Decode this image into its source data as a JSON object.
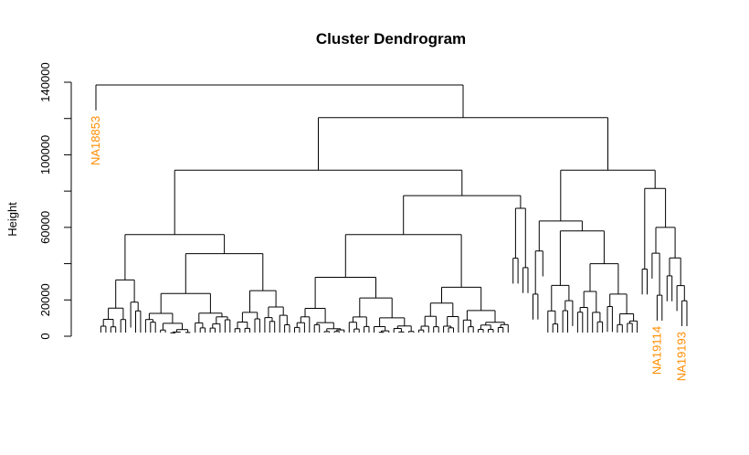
{
  "chart_data": {
    "type": "dendrogram",
    "title": "Cluster Dendrogram",
    "ylabel": "Height",
    "ylim": [
      0,
      140000
    ],
    "yticks": [
      0,
      20000,
      60000,
      100000,
      140000
    ],
    "ytick_labels": [
      "0",
      "20000",
      "60000",
      "100000",
      "140000"
    ],
    "label_color": "#FF8C00",
    "line_color": "#000000",
    "leaf_count": 120,
    "legible_leaf_labels": [
      {
        "text": "NA18853",
        "leaf_index": 0,
        "height": 138000
      },
      {
        "text": "NA19114",
        "leaf_index": 113,
        "height": 38000
      },
      {
        "text": "NA19193",
        "leaf_index": 118,
        "height": 18000
      }
    ],
    "top_merges": [
      {
        "name": "root",
        "height": 138500
      },
      {
        "name": "main-split",
        "height": 120500
      },
      {
        "name": "left-major",
        "height": 91500
      },
      {
        "name": "right-major",
        "height": 91500
      },
      {
        "name": "left-right-sub",
        "height": 77500
      },
      {
        "name": "left-left-sub",
        "height": 56000
      },
      {
        "name": "right-sub-1",
        "height": 81500
      },
      {
        "name": "right-sub-2",
        "height": 63500
      }
    ]
  }
}
